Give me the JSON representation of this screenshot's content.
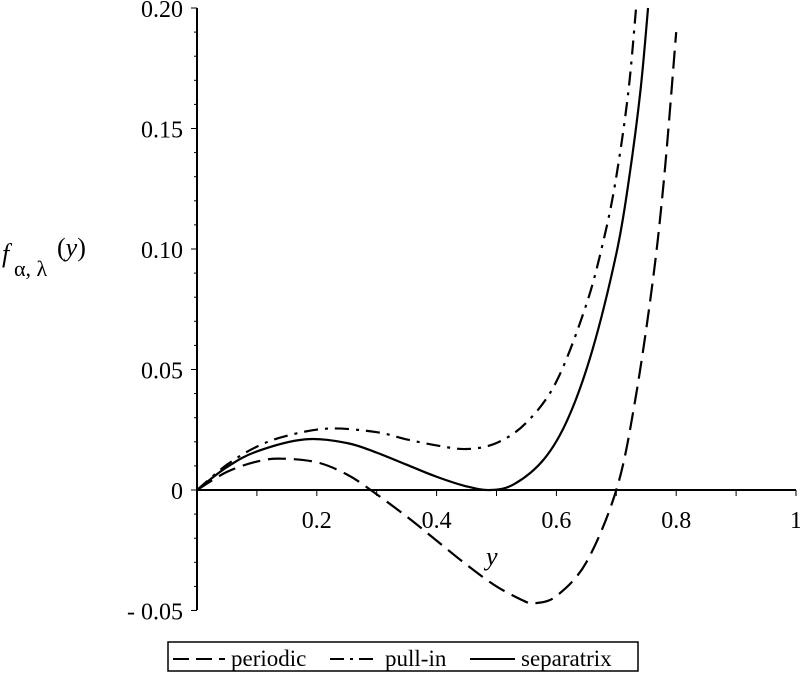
{
  "chart_data": {
    "type": "line",
    "title": "",
    "xlabel": "y",
    "ylabel": "f_{α, λ}(y)",
    "ylabel_parts": {
      "main": "f",
      "sub": "α, λ",
      "arg": "(y)"
    },
    "xlim": [
      0,
      1
    ],
    "ylim": [
      -0.05,
      0.2
    ],
    "grid": false,
    "legend_position": "bottom",
    "x_ticks": [
      0.2,
      0.4,
      0.6,
      0.8,
      1
    ],
    "x_tick_labels": [
      "0.2",
      "0.4",
      "0.6",
      "0.8",
      "1"
    ],
    "y_ticks": [
      -0.05,
      0,
      0.05,
      0.1,
      0.15,
      0.2
    ],
    "y_tick_labels": [
      "-0.05",
      "0",
      "0.05",
      "0.10",
      "0.15",
      "0.20"
    ],
    "series": [
      {
        "name": "periodic",
        "style": "dashed",
        "x": [
          0,
          0.05,
          0.1,
          0.14,
          0.2,
          0.25,
          0.29,
          0.35,
          0.4,
          0.45,
          0.5,
          0.55,
          0.565,
          0.6,
          0.65,
          0.7,
          0.73,
          0.76,
          0.78,
          0.8
        ],
        "y": [
          0,
          0.0075,
          0.0118,
          0.013,
          0.0115,
          0.0065,
          0.0,
          -0.011,
          -0.021,
          -0.031,
          -0.04,
          -0.0465,
          -0.047,
          -0.044,
          -0.03,
          0.0,
          0.035,
          0.085,
          0.13,
          0.19
        ]
      },
      {
        "name": "pull-in",
        "style": "dashdot",
        "x": [
          0,
          0.05,
          0.1,
          0.15,
          0.22,
          0.3,
          0.35,
          0.4,
          0.45,
          0.5,
          0.55,
          0.6,
          0.65,
          0.68,
          0.7,
          0.72,
          0.733
        ],
        "y": [
          0,
          0.0105,
          0.018,
          0.0225,
          0.0255,
          0.024,
          0.021,
          0.0185,
          0.017,
          0.0195,
          0.028,
          0.045,
          0.077,
          0.105,
          0.13,
          0.165,
          0.2
        ]
      },
      {
        "name": "separatrix",
        "style": "solid",
        "x": [
          0,
          0.05,
          0.1,
          0.18,
          0.25,
          0.3,
          0.35,
          0.4,
          0.45,
          0.49,
          0.53,
          0.58,
          0.62,
          0.66,
          0.7,
          0.72,
          0.74,
          0.753
        ],
        "y": [
          0,
          0.0095,
          0.016,
          0.021,
          0.0195,
          0.0155,
          0.0105,
          0.0055,
          0.0015,
          0.0,
          0.0025,
          0.013,
          0.03,
          0.058,
          0.098,
          0.127,
          0.165,
          0.2
        ]
      }
    ]
  },
  "legend": {
    "items": [
      {
        "label": "periodic",
        "style": "dashed"
      },
      {
        "label": "pull-in",
        "style": "dashdot"
      },
      {
        "label": "separatrix",
        "style": "solid"
      }
    ]
  },
  "colors": {
    "line": "#000000",
    "background": "#ffffff"
  }
}
